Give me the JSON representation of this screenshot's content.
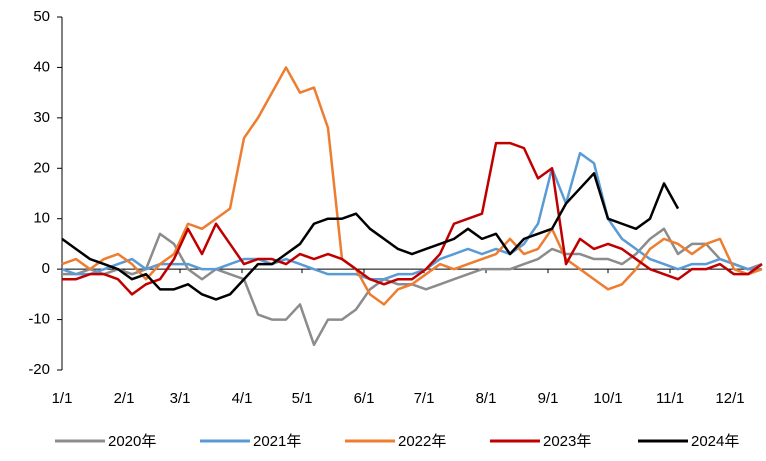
{
  "chart_data": {
    "type": "line",
    "x": [
      0,
      7,
      14,
      21,
      28,
      35,
      42,
      49,
      56,
      63,
      70,
      77,
      84,
      91,
      98,
      105,
      112,
      119,
      126,
      133,
      140,
      147,
      154,
      161,
      168,
      175,
      182,
      189,
      196,
      203,
      210,
      217,
      224,
      231,
      238,
      245,
      252,
      259,
      266,
      273,
      280,
      287,
      294,
      301,
      308,
      315,
      322,
      329,
      336,
      343,
      350
    ],
    "xlim": [
      0,
      350
    ],
    "xticks": [
      {
        "value": 0,
        "label": "1/1"
      },
      {
        "value": 31,
        "label": "2/1"
      },
      {
        "value": 59,
        "label": "3/1"
      },
      {
        "value": 90,
        "label": "4/1"
      },
      {
        "value": 120,
        "label": "5/1"
      },
      {
        "value": 151,
        "label": "6/1"
      },
      {
        "value": 181,
        "label": "7/1"
      },
      {
        "value": 212,
        "label": "8/1"
      },
      {
        "value": 243,
        "label": "9/1"
      },
      {
        "value": 273,
        "label": "10/1"
      },
      {
        "value": 304,
        "label": "11/1"
      },
      {
        "value": 334,
        "label": "12/1"
      }
    ],
    "ylim": [
      -20,
      50
    ],
    "yticks": [
      -20,
      -10,
      0,
      10,
      20,
      30,
      40,
      50
    ],
    "series": [
      {
        "name": "2020年",
        "color": "#8c8c8c",
        "values": [
          -1,
          -1,
          0,
          -1,
          0,
          -1,
          0,
          7,
          5,
          0,
          -2,
          0,
          -1,
          -2,
          -9,
          -10,
          -10,
          -7,
          -15,
          -10,
          -10,
          -8,
          -4,
          -2,
          -3,
          -3,
          -4,
          -3,
          -2,
          -1,
          0,
          0,
          0,
          1,
          2,
          4,
          3,
          3,
          2,
          2,
          1,
          3,
          6,
          8,
          3,
          5,
          5,
          2,
          1,
          0,
          1
        ]
      },
      {
        "name": "2021年",
        "color": "#5b9bd5",
        "values": [
          0,
          -1,
          -1,
          0,
          1,
          2,
          0,
          1,
          1,
          1,
          0,
          0,
          1,
          2,
          2,
          1,
          2,
          1,
          0,
          -1,
          -1,
          -1,
          -2,
          -2,
          -1,
          -1,
          0,
          2,
          3,
          4,
          3,
          4,
          3,
          5,
          9,
          20,
          13,
          23,
          21,
          10,
          6,
          4,
          2,
          1,
          0,
          1,
          1,
          2,
          1,
          0,
          0
        ]
      },
      {
        "name": "2022年",
        "color": "#ed7d31",
        "values": [
          1,
          2,
          0,
          2,
          3,
          1,
          -2,
          1,
          3,
          9,
          8,
          10,
          12,
          26,
          30,
          35,
          40,
          35,
          36,
          28,
          2,
          0,
          -5,
          -7,
          -4,
          -3,
          -1,
          1,
          0,
          1,
          2,
          3,
          6,
          3,
          4,
          8,
          2,
          0,
          -2,
          -4,
          -3,
          0,
          4,
          6,
          5,
          3,
          5,
          6,
          0,
          -1,
          0
        ]
      },
      {
        "name": "2023年",
        "color": "#c00000",
        "values": [
          -2,
          -2,
          -1,
          -1,
          -2,
          -5,
          -3,
          -2,
          2,
          8,
          3,
          9,
          5,
          1,
          2,
          2,
          1,
          3,
          2,
          3,
          2,
          0,
          -2,
          -3,
          -2,
          -2,
          0,
          3,
          9,
          10,
          11,
          25,
          25,
          24,
          18,
          20,
          1,
          6,
          4,
          5,
          4,
          2,
          0,
          -1,
          -2,
          0,
          0,
          1,
          -1,
          -1,
          1
        ]
      },
      {
        "name": "2024年",
        "color": "#000000",
        "values": [
          6,
          4,
          2,
          1,
          0,
          -2,
          -1,
          -4,
          -4,
          -3,
          -5,
          -6,
          -5,
          -2,
          1,
          1,
          3,
          5,
          9,
          10,
          10,
          11,
          8,
          6,
          4,
          3,
          4,
          5,
          6,
          8,
          6,
          7,
          3,
          6,
          7,
          8,
          13,
          16,
          19,
          10,
          9,
          8,
          10,
          17,
          12,
          null,
          null,
          null,
          null,
          null,
          null
        ]
      }
    ],
    "legend": "bottom"
  }
}
